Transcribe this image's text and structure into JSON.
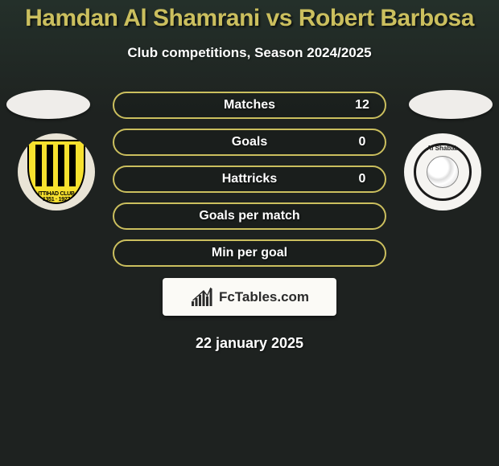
{
  "title": {
    "player1": "Hamdan Al Shamrani",
    "player2": "Robert Barbosa",
    "separator": "vs",
    "color": "#cbbf5e",
    "fontsize": 30
  },
  "subtitle": "Club competitions, Season 2024/2025",
  "stats": {
    "border_color": "#cbbf5e",
    "rows": [
      {
        "label": "Matches",
        "left": "",
        "right": "12"
      },
      {
        "label": "Goals",
        "left": "",
        "right": "0"
      },
      {
        "label": "Hattricks",
        "left": "",
        "right": "0"
      },
      {
        "label": "Goals per match",
        "left": "",
        "right": ""
      },
      {
        "label": "Min per goal",
        "left": "",
        "right": ""
      }
    ]
  },
  "players": {
    "left": {
      "placeholder_bg": "#efedea"
    },
    "right": {
      "placeholder_bg": "#efedea"
    }
  },
  "clubs": {
    "left": {
      "name": "Al Ittihad",
      "label_top": "ITTIHAD CLUB",
      "label_bottom": "1351 · 1927",
      "primary_color": "#f7e12e",
      "secondary_color": "#000000"
    },
    "right": {
      "name": "Al Shabab",
      "label": "Al Shabab",
      "ring_color": "#1a1a1a",
      "bg_color": "#f5f4f1"
    }
  },
  "brand": {
    "text": "FcTables.com",
    "icon_bars": [
      6,
      10,
      14,
      18,
      12,
      22
    ],
    "bg": "#fbfaf6"
  },
  "date": "22 january 2025",
  "theme": {
    "bg": "#1e2220",
    "accent": "#cbbf5e",
    "text": "#ffffff"
  }
}
